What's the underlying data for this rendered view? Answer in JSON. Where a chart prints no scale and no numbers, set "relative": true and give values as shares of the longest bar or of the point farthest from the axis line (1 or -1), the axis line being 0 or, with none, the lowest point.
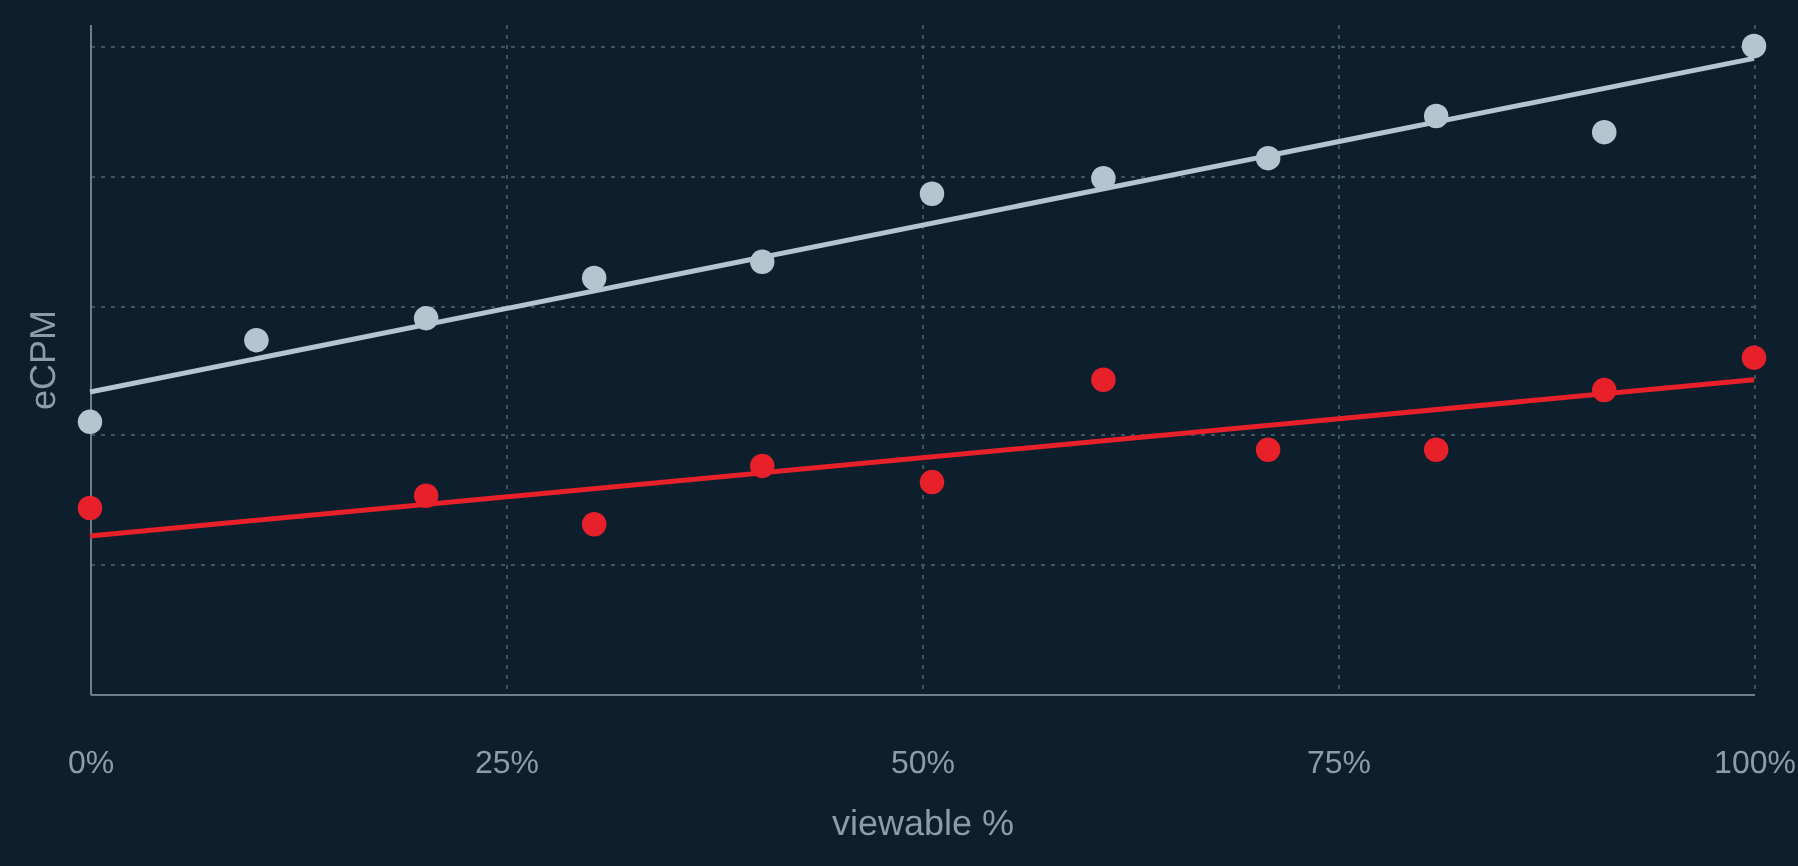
{
  "chart_data": {
    "type": "scatter",
    "xlabel": "viewable %",
    "ylabel": "eCPM",
    "relative": true,
    "grid": true,
    "xlim": [
      0,
      100
    ],
    "xticks": [
      {
        "value": 0,
        "label": "0%"
      },
      {
        "value": 25,
        "label": "25%"
      },
      {
        "value": 50,
        "label": "50%"
      },
      {
        "value": 75,
        "label": "75%"
      },
      {
        "value": 100,
        "label": "100%"
      }
    ],
    "series": [
      {
        "color": "#b4c5d0",
        "marker": "circle",
        "x": [
          0,
          10,
          20.2,
          30.3,
          40.4,
          50.6,
          60.9,
          70.8,
          80.9,
          91,
          100
        ],
        "values": [
          0.42,
          0.546,
          0.58,
          0.642,
          0.667,
          0.772,
          0.796,
          0.827,
          0.892,
          0.867,
          1
        ]
      },
      {
        "type": "line",
        "marker": "none",
        "color": "#b4c5d0",
        "x": [
          0,
          100
        ],
        "values": [
          0.466,
          0.981
        ]
      },
      {
        "color": "#e8202a",
        "marker": "circle",
        "x": [
          0,
          20.2,
          30.3,
          40.4,
          50.6,
          60.9,
          70.8,
          80.9,
          91,
          100
        ],
        "values": [
          0.287,
          0.306,
          0.262,
          0.352,
          0.327,
          0.485,
          0.377,
          0.377,
          0.469,
          0.519
        ]
      },
      {
        "type": "line",
        "marker": "none",
        "color": "#e8202a",
        "x": [
          0,
          100
        ],
        "values": [
          0.244,
          0.485
        ]
      }
    ]
  }
}
